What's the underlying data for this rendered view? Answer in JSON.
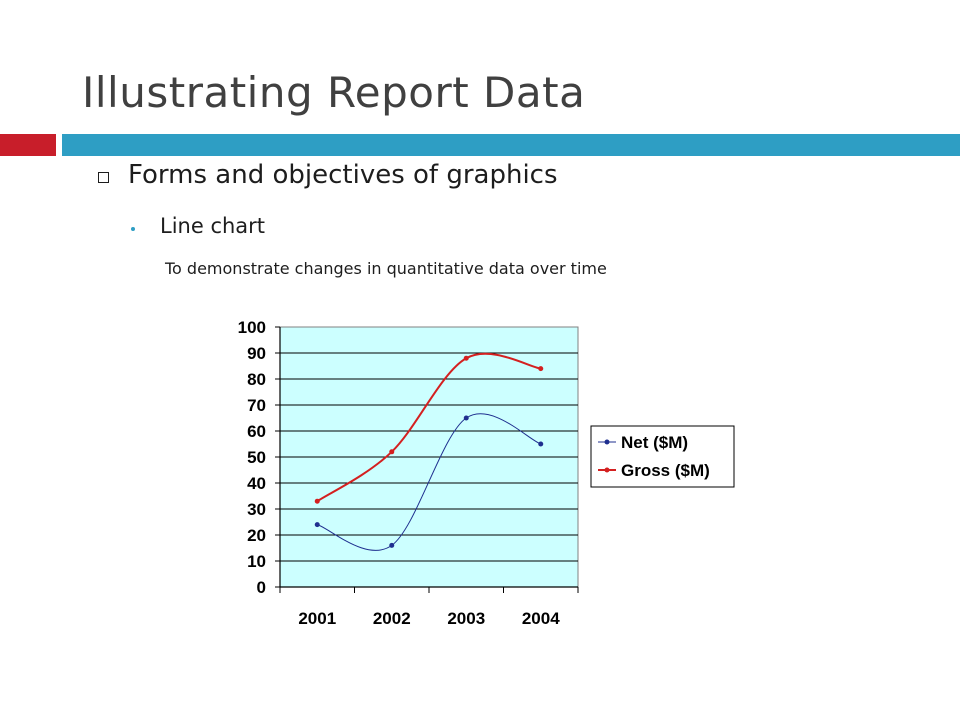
{
  "slide": {
    "title": "Illustrating Report Data",
    "bullet_level1": "Forms and objectives of graphics",
    "bullet_level2": "Line chart",
    "bullet_level3": "To demonstrate changes in quantitative data over time"
  },
  "colors": {
    "title": "#404040",
    "accent_red": "#c81e2a",
    "accent_blue": "#2e9ec4",
    "plot_bg": "#ccffff"
  },
  "chart_data": {
    "type": "line",
    "categories": [
      "2001",
      "2002",
      "2003",
      "2004"
    ],
    "series": [
      {
        "name": "Net ($M)",
        "values": [
          24,
          16,
          65,
          55
        ],
        "color": "#1f2f8f"
      },
      {
        "name": "Gross ($M)",
        "values": [
          33,
          52,
          88,
          84
        ],
        "color": "#d42020"
      }
    ],
    "ylim": [
      0,
      100
    ],
    "yticks": [
      0,
      10,
      20,
      30,
      40,
      50,
      60,
      70,
      80,
      90,
      100
    ],
    "grid": true,
    "smoothed": true,
    "legend": "right",
    "title": "",
    "xlabel": "",
    "ylabel": ""
  }
}
